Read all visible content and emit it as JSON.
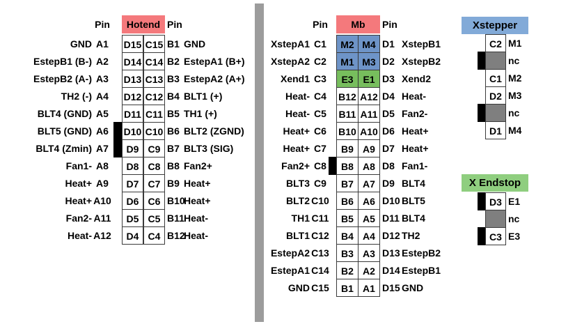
{
  "colors": {
    "red_header": "#F4797C",
    "blue_cell": "#6E94C8",
    "green_cell": "#77BE5D",
    "xstepper_header_blue": "#82AAD8",
    "xendstop_header_green": "#8FCE7F",
    "nc_gray": "#7F7F7F",
    "divider_gray": "#9C9C9C",
    "marker_black": "#000000"
  },
  "divider": {
    "name": "section-divider"
  },
  "hotend_table": {
    "header": {
      "left_pin": "Pin",
      "title": "Hotend",
      "right_pin": "Pin",
      "bg": "#F4797C"
    },
    "rows": [
      {
        "left_label": "GND",
        "left_pin": "A1",
        "cell1": "D15",
        "cell2": "C15",
        "right_pin": "B1",
        "right_label": "GND",
        "marker": false,
        "cell_bg": ""
      },
      {
        "left_label": "EstepB1 (B-)",
        "left_pin": "A2",
        "cell1": "D14",
        "cell2": "C14",
        "right_pin": "B2",
        "right_label": "EstepA1 (B+)",
        "marker": false,
        "cell_bg": ""
      },
      {
        "left_label": "EstepB2 (A-)",
        "left_pin": "A3",
        "cell1": "D13",
        "cell2": "C13",
        "right_pin": "B3",
        "right_label": "EstepA2 (A+)",
        "marker": false,
        "cell_bg": ""
      },
      {
        "left_label": "TH2 (-)",
        "left_pin": "A4",
        "cell1": "D12",
        "cell2": "C12",
        "right_pin": "B4",
        "right_label": "BLT1 (+)",
        "marker": false,
        "cell_bg": ""
      },
      {
        "left_label": "BLT4 (GND)",
        "left_pin": "A5",
        "cell1": "D11",
        "cell2": "C11",
        "right_pin": "B5",
        "right_label": "TH1 (+)",
        "marker": false,
        "cell_bg": ""
      },
      {
        "left_label": "BLT5 (GND)",
        "left_pin": "A6",
        "cell1": "D10",
        "cell2": "C10",
        "right_pin": "B6",
        "right_label": "BLT2 (ZGND)",
        "marker": true,
        "cell_bg": ""
      },
      {
        "left_label": "BLT4 (Zmin)",
        "left_pin": "A7",
        "cell1": "D9",
        "cell2": "C9",
        "right_pin": "B7",
        "right_label": "BLT3 (SIG)",
        "marker": true,
        "cell_bg": ""
      },
      {
        "left_label": "Fan1-",
        "left_pin": "A8",
        "cell1": "D8",
        "cell2": "C8",
        "right_pin": "B8",
        "right_label": "Fan2+",
        "marker": false,
        "cell_bg": ""
      },
      {
        "left_label": "Heat+",
        "left_pin": "A9",
        "cell1": "D7",
        "cell2": "C7",
        "right_pin": "B9",
        "right_label": "Heat+",
        "marker": false,
        "cell_bg": ""
      },
      {
        "left_label": "Heat+",
        "left_pin": "A10",
        "cell1": "D6",
        "cell2": "C6",
        "right_pin": "B10",
        "right_label": "Heat+",
        "marker": false,
        "cell_bg": ""
      },
      {
        "left_label": "Fan2-",
        "left_pin": "A11",
        "cell1": "D5",
        "cell2": "C5",
        "right_pin": "B11",
        "right_label": "Heat-",
        "marker": false,
        "cell_bg": ""
      },
      {
        "left_label": "Heat-",
        "left_pin": "A12",
        "cell1": "D4",
        "cell2": "C4",
        "right_pin": "B12",
        "right_label": "Heat-",
        "marker": false,
        "cell_bg": ""
      }
    ]
  },
  "mb_table": {
    "header": {
      "left_pin": "Pin",
      "title": "Mb",
      "right_pin": "Pin",
      "bg": "#F4797C"
    },
    "rows": [
      {
        "left_label": "XstepA1",
        "left_pin": "C1",
        "cell1": "M2",
        "cell2": "M4",
        "right_pin": "D1",
        "right_label": "XstepB1",
        "marker": false,
        "cell_bg": "#6E94C8"
      },
      {
        "left_label": "XstepA2",
        "left_pin": "C2",
        "cell1": "M1",
        "cell2": "M3",
        "right_pin": "D2",
        "right_label": "XstepB2",
        "marker": false,
        "cell_bg": "#6E94C8"
      },
      {
        "left_label": "Xend1",
        "left_pin": "C3",
        "cell1": "E3",
        "cell2": "E1",
        "right_pin": "D3",
        "right_label": "Xend2",
        "marker": false,
        "cell_bg": "#77BE5D"
      },
      {
        "left_label": "Heat-",
        "left_pin": "C4",
        "cell1": "B12",
        "cell2": "A12",
        "right_pin": "D4",
        "right_label": "Heat-",
        "marker": false,
        "cell_bg": ""
      },
      {
        "left_label": "Heat-",
        "left_pin": "C5",
        "cell1": "B11",
        "cell2": "A11",
        "right_pin": "D5",
        "right_label": "Fan2-",
        "marker": false,
        "cell_bg": ""
      },
      {
        "left_label": "Heat+",
        "left_pin": "C6",
        "cell1": "B10",
        "cell2": "A10",
        "right_pin": "D6",
        "right_label": "Heat+",
        "marker": false,
        "cell_bg": ""
      },
      {
        "left_label": "Heat+",
        "left_pin": "C7",
        "cell1": "B9",
        "cell2": "A9",
        "right_pin": "D7",
        "right_label": "Heat+",
        "marker": false,
        "cell_bg": ""
      },
      {
        "left_label": "Fan2+",
        "left_pin": "C8",
        "cell1": "B8",
        "cell2": "A8",
        "right_pin": "D8",
        "right_label": "Fan1-",
        "marker": true,
        "cell_bg": ""
      },
      {
        "left_label": "BLT3",
        "left_pin": "C9",
        "cell1": "B7",
        "cell2": "A7",
        "right_pin": "D9",
        "right_label": "BLT4",
        "marker": false,
        "cell_bg": ""
      },
      {
        "left_label": "BLT2",
        "left_pin": "C10",
        "cell1": "B6",
        "cell2": "A6",
        "right_pin": "D10",
        "right_label": "BLT5",
        "marker": false,
        "cell_bg": ""
      },
      {
        "left_label": "TH1",
        "left_pin": "C11",
        "cell1": "B5",
        "cell2": "A5",
        "right_pin": "D11",
        "right_label": "BLT4",
        "marker": false,
        "cell_bg": ""
      },
      {
        "left_label": "BLT1",
        "left_pin": "C12",
        "cell1": "B4",
        "cell2": "A4",
        "right_pin": "D12",
        "right_label": "TH2",
        "marker": false,
        "cell_bg": ""
      },
      {
        "left_label": "EstepA2",
        "left_pin": "C13",
        "cell1": "B3",
        "cell2": "A3",
        "right_pin": "D13",
        "right_label": "EstepB2",
        "marker": false,
        "cell_bg": ""
      },
      {
        "left_label": "EstepA1",
        "left_pin": "C14",
        "cell1": "B2",
        "cell2": "A2",
        "right_pin": "D14",
        "right_label": "EstepB1",
        "marker": false,
        "cell_bg": ""
      },
      {
        "left_label": "GND",
        "left_pin": "C15",
        "cell1": "B1",
        "cell2": "A1",
        "right_pin": "D15",
        "right_label": "GND",
        "marker": false,
        "cell_bg": ""
      }
    ]
  },
  "xstepper_table": {
    "header": {
      "title": "Xstepper",
      "bg": "#82AAD8"
    },
    "rows": [
      {
        "cell": "C2",
        "label": "M1",
        "marker": false,
        "cell_bg": ""
      },
      {
        "cell": "",
        "label": "nc",
        "marker": true,
        "cell_bg": "#7F7F7F"
      },
      {
        "cell": "C1",
        "label": "M2",
        "marker": false,
        "cell_bg": ""
      },
      {
        "cell": "D2",
        "label": "M3",
        "marker": false,
        "cell_bg": ""
      },
      {
        "cell": "",
        "label": "nc",
        "marker": true,
        "cell_bg": "#7F7F7F"
      },
      {
        "cell": "D1",
        "label": "M4",
        "marker": false,
        "cell_bg": ""
      }
    ]
  },
  "xendstop_table": {
    "header": {
      "title": "X Endstop",
      "bg": "#8FCE7F"
    },
    "rows": [
      {
        "cell": "D3",
        "label": "E1",
        "marker": true,
        "cell_bg": ""
      },
      {
        "cell": "",
        "label": "nc",
        "marker": false,
        "cell_bg": "#7F7F7F"
      },
      {
        "cell": "C3",
        "label": "E3",
        "marker": true,
        "cell_bg": ""
      }
    ]
  }
}
